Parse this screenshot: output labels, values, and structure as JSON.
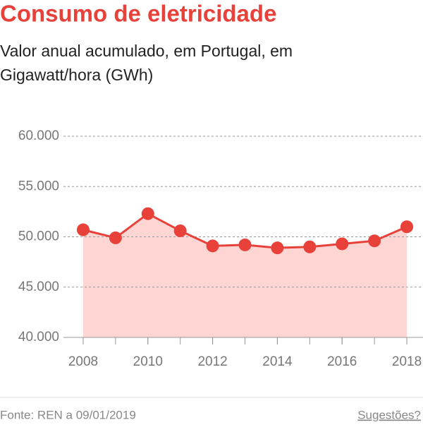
{
  "chart_data": {
    "type": "line",
    "title": "Consumo de eletricidade",
    "subtitle": "Valor anual acumulado, em Portugal, em Gigawatt/hora (GWh)",
    "x": [
      2008,
      2009,
      2010,
      2011,
      2012,
      2013,
      2014,
      2015,
      2016,
      2017,
      2018
    ],
    "values": [
      50700,
      49900,
      52300,
      50600,
      49100,
      49200,
      48900,
      49000,
      49300,
      49600,
      51000
    ],
    "color": "#e8413a",
    "area_color": "#fdd6d4",
    "xlim": [
      2007.5,
      2018.5
    ],
    "xticks": [
      2008,
      2010,
      2012,
      2014,
      2016,
      2018
    ],
    "ylim": [
      40000,
      60000
    ],
    "yticks": [
      {
        "value": 40000,
        "label": "40.000"
      },
      {
        "value": 45000,
        "label": "45.000"
      },
      {
        "value": 50000,
        "label": "50.000"
      },
      {
        "value": 55000,
        "label": "55.000"
      },
      {
        "value": 60000,
        "label": "60.000"
      }
    ],
    "grid": true
  },
  "footer": {
    "source": "Fonte: REN a 09/01/2019",
    "link": "Sugestões?"
  }
}
